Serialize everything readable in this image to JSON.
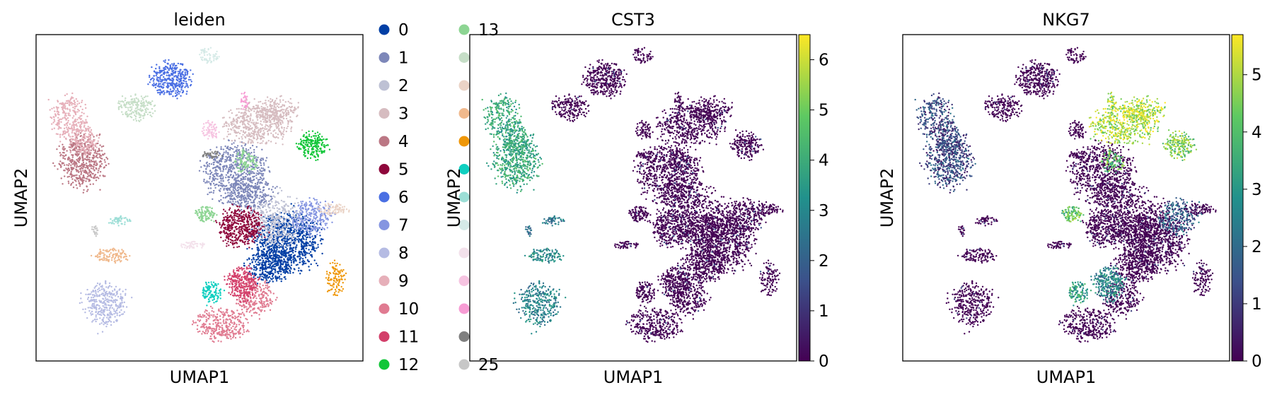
{
  "chart_data": [
    {
      "type": "scatter",
      "title": "leiden",
      "xlabel": "UMAP1",
      "ylabel": "UMAP2",
      "color_mode": "categorical",
      "legend": {
        "placement": "right-outside",
        "entries": [
          {
            "label": "0",
            "color": "#023fa5"
          },
          {
            "label": "1",
            "color": "#7d87b9"
          },
          {
            "label": "2",
            "color": "#bec1d4"
          },
          {
            "label": "3",
            "color": "#d6bcc0"
          },
          {
            "label": "4",
            "color": "#bb7784"
          },
          {
            "label": "5",
            "color": "#8e063b"
          },
          {
            "label": "6",
            "color": "#4a6fe3"
          },
          {
            "label": "7",
            "color": "#8595e1"
          },
          {
            "label": "8",
            "color": "#b5bbe3"
          },
          {
            "label": "9",
            "color": "#e6afb9"
          },
          {
            "label": "10",
            "color": "#e07b91"
          },
          {
            "label": "11",
            "color": "#d33f6a"
          },
          {
            "label": "12",
            "color": "#11c638"
          },
          {
            "label": "13",
            "color": "#8dd593"
          },
          {
            "label": "",
            "color": "#c6dec7"
          },
          {
            "label": "",
            "color": "#ead3c6"
          },
          {
            "label": "",
            "color": "#f0b98d"
          },
          {
            "label": "",
            "color": "#ef9708"
          },
          {
            "label": "",
            "color": "#0fcfc0"
          },
          {
            "label": "",
            "color": "#9cded6"
          },
          {
            "label": "",
            "color": "#d5eae7"
          },
          {
            "label": "",
            "color": "#f3e1eb"
          },
          {
            "label": "",
            "color": "#f6c4e1"
          },
          {
            "label": "",
            "color": "#f79cd4"
          },
          {
            "label": "",
            "color": "#7f7f7f"
          },
          {
            "label": "25",
            "color": "#c7c7c7"
          }
        ]
      }
    },
    {
      "type": "scatter",
      "title": "CST3",
      "xlabel": "UMAP1",
      "ylabel": "UMAP2",
      "color_mode": "continuous",
      "colormap": "viridis",
      "colorbar": {
        "min": 0,
        "max": 6.5,
        "ticks": [
          0,
          1,
          2,
          3,
          4,
          5,
          6
        ]
      }
    },
    {
      "type": "scatter",
      "title": "NKG7",
      "xlabel": "UMAP1",
      "ylabel": "UMAP2",
      "color_mode": "continuous",
      "colormap": "viridis",
      "colorbar": {
        "min": 0,
        "max": 5.7,
        "ticks": [
          0,
          1,
          2,
          3,
          4,
          5
        ]
      }
    }
  ]
}
